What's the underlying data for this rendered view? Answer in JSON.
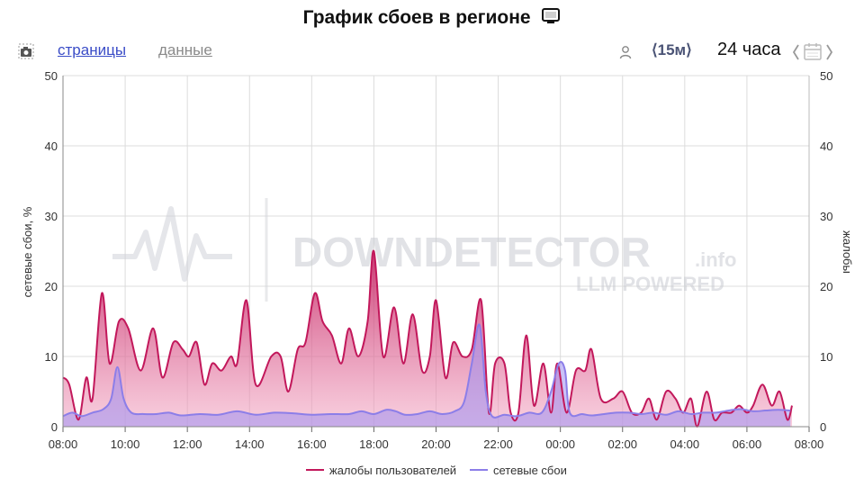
{
  "header": {
    "title": "График сбоев в регионе"
  },
  "toolbar": {
    "tabs": [
      {
        "label": "страницы",
        "active": true
      },
      {
        "label": "данные",
        "active": false
      }
    ],
    "interval": "⟨15м⟩",
    "range": "24 часа"
  },
  "watermark": {
    "brand": "DOWNDETECTOR",
    "suffix": ".info",
    "tagline": "LLM POWERED"
  },
  "colors": {
    "complaints": "#c2185b",
    "network": "#8c7ee8",
    "grid": "#dcdcdc"
  },
  "chart_data": {
    "type": "area",
    "ylabel_left": "сетевые сбои, %",
    "ylabel_right": "жалобы",
    "ylim": [
      0,
      50
    ],
    "y2lim": [
      0,
      50
    ],
    "yticks": [
      "0",
      "10",
      "20",
      "30",
      "40",
      "50"
    ],
    "xticks": [
      "08:00",
      "10:00",
      "12:00",
      "14:00",
      "16:00",
      "18:00",
      "20:00",
      "22:00",
      "00:00",
      "02:00",
      "04:00",
      "06:00",
      "08:00"
    ],
    "x_unit": "hours since 08:00",
    "legend_position": "bottom",
    "series": [
      {
        "name": "жалобы пользователей",
        "axis": "right",
        "points": [
          [
            0.0,
            7
          ],
          [
            0.2,
            6
          ],
          [
            0.5,
            1
          ],
          [
            0.75,
            7
          ],
          [
            0.95,
            4
          ],
          [
            1.25,
            19
          ],
          [
            1.5,
            9
          ],
          [
            1.8,
            15
          ],
          [
            2.1,
            14
          ],
          [
            2.5,
            8
          ],
          [
            2.9,
            14
          ],
          [
            3.2,
            7
          ],
          [
            3.55,
            12
          ],
          [
            3.85,
            11
          ],
          [
            4.05,
            10
          ],
          [
            4.3,
            12
          ],
          [
            4.55,
            6
          ],
          [
            4.8,
            9
          ],
          [
            5.1,
            8
          ],
          [
            5.4,
            10
          ],
          [
            5.6,
            9
          ],
          [
            5.9,
            18
          ],
          [
            6.2,
            6
          ],
          [
            6.7,
            10
          ],
          [
            7.0,
            10
          ],
          [
            7.25,
            5
          ],
          [
            7.55,
            11
          ],
          [
            7.8,
            12
          ],
          [
            8.1,
            19
          ],
          [
            8.35,
            15
          ],
          [
            8.65,
            13
          ],
          [
            8.95,
            9
          ],
          [
            9.2,
            14
          ],
          [
            9.5,
            10
          ],
          [
            9.8,
            15
          ],
          [
            10.0,
            25
          ],
          [
            10.3,
            10
          ],
          [
            10.65,
            17
          ],
          [
            10.95,
            9
          ],
          [
            11.25,
            16
          ],
          [
            11.55,
            8
          ],
          [
            11.8,
            10
          ],
          [
            12.0,
            18
          ],
          [
            12.3,
            7
          ],
          [
            12.55,
            12
          ],
          [
            12.85,
            10
          ],
          [
            13.15,
            11
          ],
          [
            13.45,
            18
          ],
          [
            13.7,
            2
          ],
          [
            13.9,
            9
          ],
          [
            14.2,
            9
          ],
          [
            14.4,
            2
          ],
          [
            14.65,
            2
          ],
          [
            14.9,
            13
          ],
          [
            15.15,
            3
          ],
          [
            15.45,
            9
          ],
          [
            15.7,
            2
          ],
          [
            15.9,
            9
          ],
          [
            16.2,
            2
          ],
          [
            16.5,
            8
          ],
          [
            16.8,
            8
          ],
          [
            17.0,
            11
          ],
          [
            17.3,
            4
          ],
          [
            17.7,
            4
          ],
          [
            18.0,
            5
          ],
          [
            18.3,
            2
          ],
          [
            18.6,
            2
          ],
          [
            18.85,
            4
          ],
          [
            19.1,
            1
          ],
          [
            19.4,
            5
          ],
          [
            19.7,
            4
          ],
          [
            19.95,
            2
          ],
          [
            20.2,
            4
          ],
          [
            20.4,
            0
          ],
          [
            20.7,
            5
          ],
          [
            20.95,
            1
          ],
          [
            21.2,
            2
          ],
          [
            21.5,
            2
          ],
          [
            21.75,
            3
          ],
          [
            22.0,
            2
          ],
          [
            22.2,
            3
          ],
          [
            22.5,
            6
          ],
          [
            22.8,
            3
          ],
          [
            23.05,
            5
          ],
          [
            23.3,
            1
          ],
          [
            23.45,
            3
          ]
        ]
      },
      {
        "name": "сетевые сбои",
        "axis": "left",
        "points": [
          [
            0.0,
            1.5
          ],
          [
            0.3,
            2
          ],
          [
            0.6,
            1.5
          ],
          [
            0.95,
            2
          ],
          [
            1.3,
            2.5
          ],
          [
            1.55,
            4
          ],
          [
            1.75,
            8.5
          ],
          [
            1.95,
            4
          ],
          [
            2.2,
            2
          ],
          [
            2.6,
            1.8
          ],
          [
            3.0,
            1.8
          ],
          [
            3.4,
            2
          ],
          [
            3.8,
            1.6
          ],
          [
            4.4,
            1.8
          ],
          [
            5.0,
            1.7
          ],
          [
            5.6,
            2.2
          ],
          [
            6.2,
            1.7
          ],
          [
            6.8,
            2
          ],
          [
            7.4,
            1.9
          ],
          [
            8.0,
            1.7
          ],
          [
            8.6,
            1.8
          ],
          [
            9.2,
            1.8
          ],
          [
            9.6,
            2.2
          ],
          [
            10.0,
            1.8
          ],
          [
            10.4,
            2.4
          ],
          [
            10.7,
            2.2
          ],
          [
            11.0,
            1.7
          ],
          [
            11.4,
            1.8
          ],
          [
            11.8,
            2.2
          ],
          [
            12.2,
            1.8
          ],
          [
            12.6,
            2.2
          ],
          [
            12.9,
            3.5
          ],
          [
            13.15,
            9
          ],
          [
            13.4,
            14.5
          ],
          [
            13.6,
            5
          ],
          [
            13.8,
            1.5
          ],
          [
            14.2,
            1.7
          ],
          [
            14.6,
            1.5
          ],
          [
            15.0,
            2
          ],
          [
            15.4,
            2
          ],
          [
            15.7,
            5
          ],
          [
            15.95,
            9
          ],
          [
            16.15,
            8
          ],
          [
            16.3,
            2
          ],
          [
            16.7,
            1.8
          ],
          [
            17.0,
            1.6
          ],
          [
            17.4,
            1.8
          ],
          [
            17.8,
            2
          ],
          [
            18.2,
            2
          ],
          [
            18.6,
            1.8
          ],
          [
            19.0,
            2
          ],
          [
            19.4,
            1.7
          ],
          [
            19.8,
            2.2
          ],
          [
            20.2,
            1.8
          ],
          [
            20.6,
            2
          ],
          [
            21.0,
            2
          ],
          [
            21.4,
            2.3
          ],
          [
            21.8,
            2.5
          ],
          [
            22.2,
            2.2
          ],
          [
            22.6,
            2.3
          ],
          [
            23.0,
            2.4
          ],
          [
            23.4,
            2.3
          ]
        ]
      }
    ]
  }
}
